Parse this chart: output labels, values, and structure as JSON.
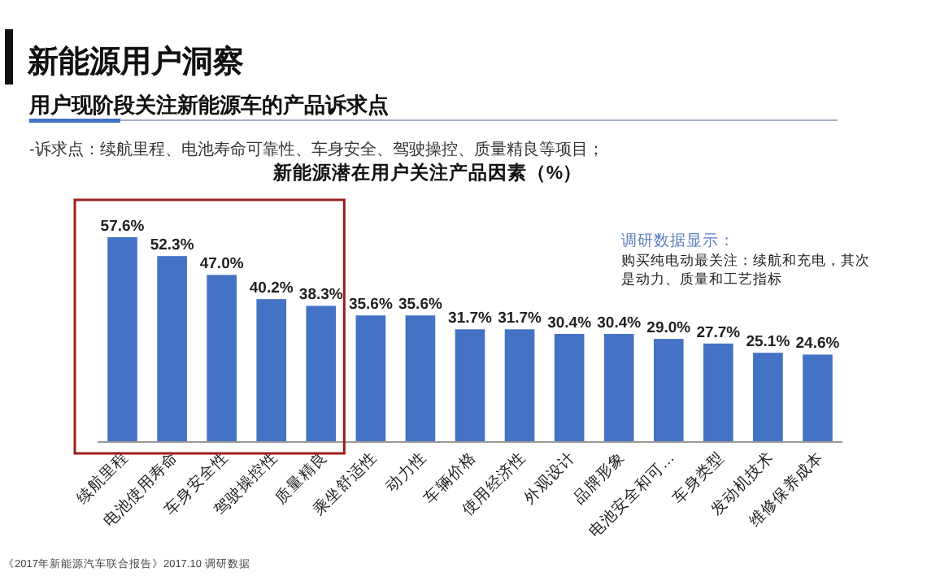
{
  "chart_data": {
    "type": "bar",
    "title": "新能源用户洞察",
    "subtitle": "用户现阶段关注新能源车的产品诉求点",
    "annotations": [
      "-诉求点：续航里程、电池寿命可靠性、车身安全、驾驶操控、质量精良等项目；",
      "新能源潜在用户关注产品因素（%）",
      "调研数据显示：",
      "购买纯电动最关注：续航和充电，其次是动力、质量和工艺指标",
      "《2017年新能源汽车联合报告》2017.10 调研数据"
    ],
    "categories": [
      "续航里程",
      "电池使用寿命",
      "车身安全性",
      "驾驶操控性",
      "质量精良",
      "乘坐舒适性",
      "动力性",
      "车辆价格",
      "使用经济性",
      "外观设计",
      "品牌形象",
      "电池安全和可…",
      "车身类型",
      "发动机技术",
      "维修保养成本"
    ],
    "values": [
      57.6,
      52.3,
      47.0,
      40.2,
      38.3,
      35.6,
      35.6,
      31.7,
      31.7,
      30.4,
      30.4,
      29.0,
      27.7,
      25.1,
      24.6
    ],
    "value_labels": [
      "57.6%",
      "52.3%",
      "47.0%",
      "40.2%",
      "38.3%",
      "35.6%",
      "35.6%",
      "31.7%",
      "31.7%",
      "30.4%",
      "30.4%",
      "29.0%",
      "27.7%",
      "25.1%",
      "24.6%"
    ],
    "color": "#4472c4"
  }
}
